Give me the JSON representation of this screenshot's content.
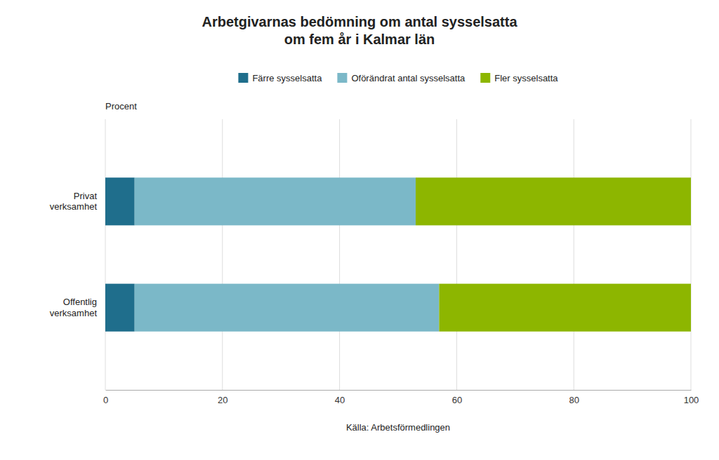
{
  "chart_data": {
    "type": "bar",
    "orientation": "horizontal",
    "stacked": true,
    "title": "Arbetgivarnas bedömning om antal sysselsatta\nom fem år i Kalmar län",
    "categories": [
      "Privat\nverksamhet",
      "Offentlig\nverksamhet"
    ],
    "series": [
      {
        "name": "Färre sysselsatta",
        "color": "#1f6e8c",
        "values": [
          5,
          5
        ]
      },
      {
        "name": "Oförändrat antal sysselsatta",
        "color": "#7bb8c8",
        "values": [
          48,
          52
        ]
      },
      {
        "name": "Fler sysselsatta",
        "color": "#8db600",
        "values": [
          47,
          43
        ]
      }
    ],
    "xlabel": "Källa: Arbetsförmedlingen",
    "ylabel": "Procent",
    "xlim": [
      0,
      100
    ],
    "xticks": [
      0,
      20,
      40,
      60,
      80,
      100
    ],
    "grid": true,
    "legend": "top"
  }
}
